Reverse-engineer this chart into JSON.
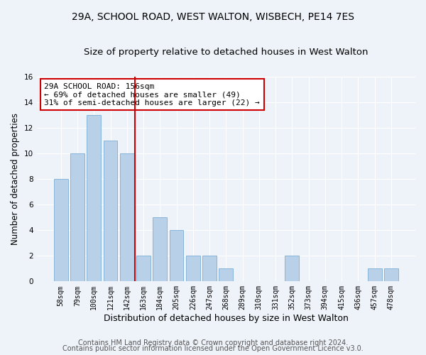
{
  "title1": "29A, SCHOOL ROAD, WEST WALTON, WISBECH, PE14 7ES",
  "title2": "Size of property relative to detached houses in West Walton",
  "xlabel": "Distribution of detached houses by size in West Walton",
  "ylabel": "Number of detached properties",
  "categories": [
    "58sqm",
    "79sqm",
    "100sqm",
    "121sqm",
    "142sqm",
    "163sqm",
    "184sqm",
    "205sqm",
    "226sqm",
    "247sqm",
    "268sqm",
    "289sqm",
    "310sqm",
    "331sqm",
    "352sqm",
    "373sqm",
    "394sqm",
    "415sqm",
    "436sqm",
    "457sqm",
    "478sqm"
  ],
  "values": [
    8,
    10,
    13,
    11,
    10,
    2,
    5,
    4,
    2,
    2,
    1,
    0,
    0,
    0,
    2,
    0,
    0,
    0,
    0,
    1,
    1
  ],
  "bar_color": "#b8d0e8",
  "bar_edge_color": "#7aadd4",
  "vline_x": 4.5,
  "vline_color": "#cc0000",
  "annotation_line1": "29A SCHOOL ROAD: 156sqm",
  "annotation_line2": "← 69% of detached houses are smaller (49)",
  "annotation_line3": "31% of semi-detached houses are larger (22) →",
  "annotation_box_color": "#ffffff",
  "annotation_box_edge": "#cc0000",
  "ylim": [
    0,
    16
  ],
  "yticks": [
    0,
    2,
    4,
    6,
    8,
    10,
    12,
    14,
    16
  ],
  "footer1": "Contains HM Land Registry data © Crown copyright and database right 2024.",
  "footer2": "Contains public sector information licensed under the Open Government Licence v3.0.",
  "bg_color": "#eef2f9",
  "plot_bg_color": "#eef2f9",
  "title_fontsize": 10,
  "subtitle_fontsize": 9.5,
  "tick_fontsize": 7,
  "ylabel_fontsize": 8.5,
  "xlabel_fontsize": 9,
  "annotation_fontsize": 8,
  "footer_fontsize": 7
}
